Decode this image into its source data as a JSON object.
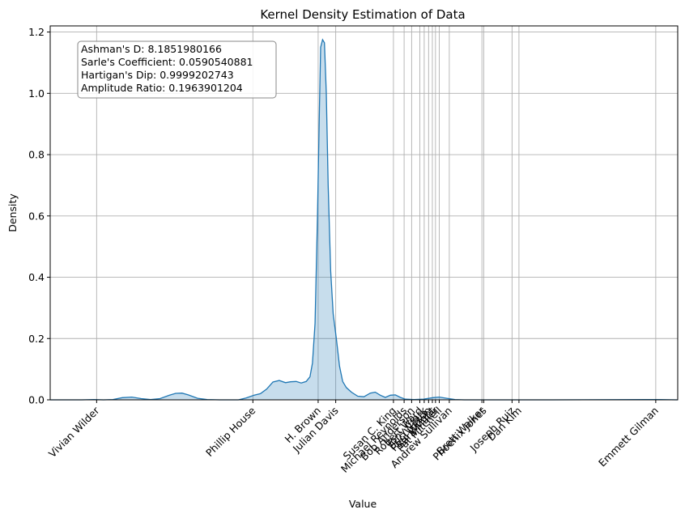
{
  "chart_data": {
    "type": "area",
    "title": "Kernel Density Estimation of Data",
    "xlabel": "Value",
    "ylabel": "Density",
    "ylim": [
      0,
      1.22
    ],
    "yticks": [
      0.0,
      0.2,
      0.4,
      0.6,
      0.8,
      1.0,
      1.2
    ],
    "ytick_labels": [
      "0.0",
      "0.2",
      "0.4",
      "0.6",
      "0.8",
      "1.0",
      "1.2"
    ],
    "grid": true,
    "x_categories": [
      {
        "label": "Vivian Wilder",
        "pos": 0.074
      },
      {
        "label": "Phillip House",
        "pos": 0.323
      },
      {
        "label": "H. Brown",
        "pos": 0.427
      },
      {
        "label": "Julian Davis",
        "pos": 0.455
      },
      {
        "label": "Susan C. King",
        "pos": 0.547
      },
      {
        "label": "Michael Reynolds",
        "pos": 0.564
      },
      {
        "label": "Bob Anderson",
        "pos": 0.576
      },
      {
        "label": "Robert Ward",
        "pos": 0.589
      },
      {
        "label": "Tony Clark",
        "pos": 0.596
      },
      {
        "label": "Eric Wilson",
        "pos": 0.603
      },
      {
        "label": "Paul Wright",
        "pos": 0.609
      },
      {
        "label": "Sara Miller",
        "pos": 0.614
      },
      {
        "label": "Pat Mitchell",
        "pos": 0.62
      },
      {
        "label": "Andrew Sullivan",
        "pos": 0.636
      },
      {
        "label": "Brett Walker",
        "pos": 0.688
      },
      {
        "label": "Phoenix Jones",
        "pos": 0.691
      },
      {
        "label": "Joseph Ruiz",
        "pos": 0.736
      },
      {
        "label": "Dan Kim",
        "pos": 0.747
      },
      {
        "label": "Emmett Gilman",
        "pos": 0.965
      }
    ],
    "series": [
      {
        "color": "#1f77b4",
        "fill": "#1f77b4",
        "points": [
          [
            0.0,
            0.0
          ],
          [
            0.05,
            0.0
          ],
          [
            0.07,
            0.001
          ],
          [
            0.085,
            0.0
          ],
          [
            0.1,
            0.001
          ],
          [
            0.115,
            0.007
          ],
          [
            0.13,
            0.009
          ],
          [
            0.145,
            0.004
          ],
          [
            0.16,
            0.001
          ],
          [
            0.175,
            0.004
          ],
          [
            0.19,
            0.015
          ],
          [
            0.2,
            0.021
          ],
          [
            0.21,
            0.022
          ],
          [
            0.22,
            0.016
          ],
          [
            0.235,
            0.005
          ],
          [
            0.25,
            0.001
          ],
          [
            0.27,
            0.0
          ],
          [
            0.3,
            0.0
          ],
          [
            0.312,
            0.006
          ],
          [
            0.325,
            0.015
          ],
          [
            0.335,
            0.02
          ],
          [
            0.345,
            0.035
          ],
          [
            0.355,
            0.058
          ],
          [
            0.365,
            0.063
          ],
          [
            0.375,
            0.056
          ],
          [
            0.383,
            0.059
          ],
          [
            0.392,
            0.06
          ],
          [
            0.4,
            0.055
          ],
          [
            0.408,
            0.06
          ],
          [
            0.414,
            0.075
          ],
          [
            0.418,
            0.12
          ],
          [
            0.422,
            0.25
          ],
          [
            0.426,
            0.6
          ],
          [
            0.429,
            0.95
          ],
          [
            0.431,
            1.15
          ],
          [
            0.434,
            1.175
          ],
          [
            0.437,
            1.165
          ],
          [
            0.44,
            1.0
          ],
          [
            0.443,
            0.7
          ],
          [
            0.447,
            0.42
          ],
          [
            0.451,
            0.28
          ],
          [
            0.456,
            0.2
          ],
          [
            0.461,
            0.11
          ],
          [
            0.466,
            0.06
          ],
          [
            0.472,
            0.04
          ],
          [
            0.48,
            0.025
          ],
          [
            0.49,
            0.012
          ],
          [
            0.5,
            0.01
          ],
          [
            0.51,
            0.022
          ],
          [
            0.518,
            0.025
          ],
          [
            0.526,
            0.015
          ],
          [
            0.534,
            0.008
          ],
          [
            0.542,
            0.015
          ],
          [
            0.55,
            0.016
          ],
          [
            0.558,
            0.008
          ],
          [
            0.566,
            0.002
          ],
          [
            0.58,
            0.001
          ],
          [
            0.595,
            0.002
          ],
          [
            0.61,
            0.007
          ],
          [
            0.62,
            0.009
          ],
          [
            0.632,
            0.005
          ],
          [
            0.645,
            0.001
          ],
          [
            0.66,
            0.0
          ],
          [
            0.7,
            0.0
          ],
          [
            0.8,
            0.0
          ],
          [
            0.95,
            0.001
          ],
          [
            0.97,
            0.001
          ],
          [
            1.0,
            0.0
          ]
        ]
      }
    ],
    "annotations": [
      {
        "text": "Ashman's D: 8.1851980166"
      },
      {
        "text": "Sarle's Coefficient: 0.0590540881"
      },
      {
        "text": "Hartigan's Dip: 0.9999202743"
      },
      {
        "text": "Amplitude Ratio: 0.1963901204"
      }
    ]
  }
}
